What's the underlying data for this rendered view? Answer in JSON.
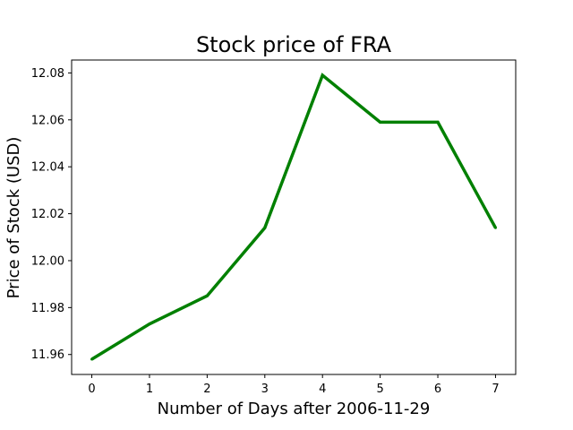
{
  "chart_data": {
    "type": "line",
    "title": "Stock price of FRA",
    "xlabel": "Number of Days after 2006-11-29",
    "ylabel": "Price of Stock (USD)",
    "x": [
      0,
      1,
      2,
      3,
      4,
      5,
      6,
      7
    ],
    "series": [
      {
        "values": [
          11.958,
          11.973,
          11.985,
          12.014,
          12.079,
          12.059,
          12.059,
          12.014
        ]
      }
    ],
    "xlim": [
      -0.35,
      7.35
    ],
    "ylim": [
      11.9515,
      12.0855
    ],
    "x_ticks": [
      0,
      1,
      2,
      3,
      4,
      5,
      6,
      7
    ],
    "x_tick_labels": [
      "0",
      "1",
      "2",
      "3",
      "4",
      "5",
      "6",
      "7"
    ],
    "y_ticks": [
      11.96,
      11.98,
      12.0,
      12.02,
      12.04,
      12.06,
      12.08
    ],
    "y_tick_labels": [
      "11.96",
      "11.98",
      "12.00",
      "12.02",
      "12.04",
      "12.06",
      "12.08"
    ],
    "grid": false,
    "legend": "none",
    "line_color": "#008000"
  }
}
